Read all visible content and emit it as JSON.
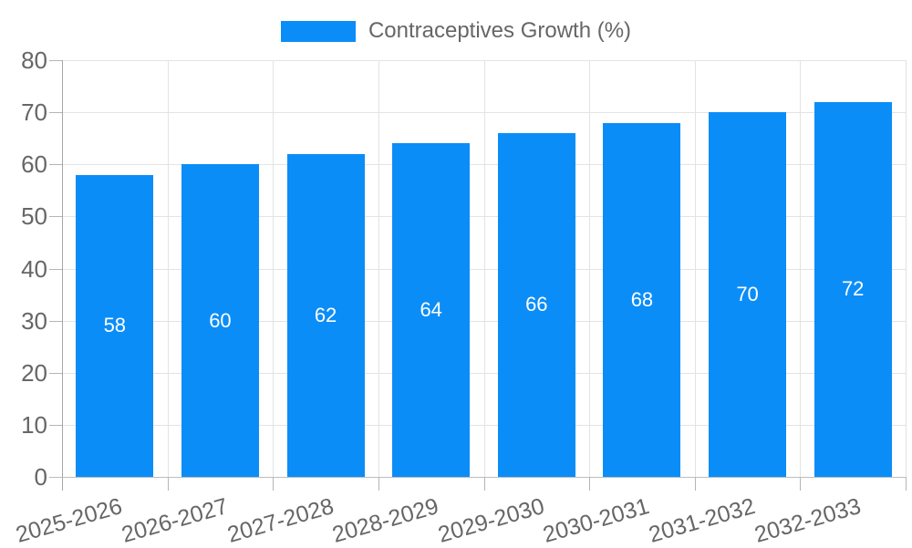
{
  "chart_data": {
    "type": "bar",
    "legend": [
      {
        "label": "Contraceptives Growth (%)",
        "color": "#0b8df8"
      }
    ],
    "categories": [
      "2025-2026",
      "2026-2027",
      "2027-2028",
      "2028-2029",
      "2029-2030",
      "2030-2031",
      "2031-2032",
      "2032-2033"
    ],
    "values": [
      58,
      60,
      62,
      64,
      66,
      68,
      70,
      72
    ],
    "bar_labels": [
      "58",
      "60",
      "62",
      "64",
      "66",
      "68",
      "70",
      "72"
    ],
    "ylim": [
      0,
      80
    ],
    "yticks": [
      0,
      10,
      20,
      30,
      40,
      50,
      60,
      70,
      80
    ],
    "grid": true,
    "legend_position": "top-center",
    "colors": {
      "bar": "#0b8df8",
      "bar_label_text": "#ffffff",
      "grid": "#e3e3e3",
      "axis": "#a6a6a6",
      "tick": "#b5b5b5",
      "tick_text": "#666666",
      "legend_text": "#666666",
      "background": "#ffffff"
    }
  }
}
